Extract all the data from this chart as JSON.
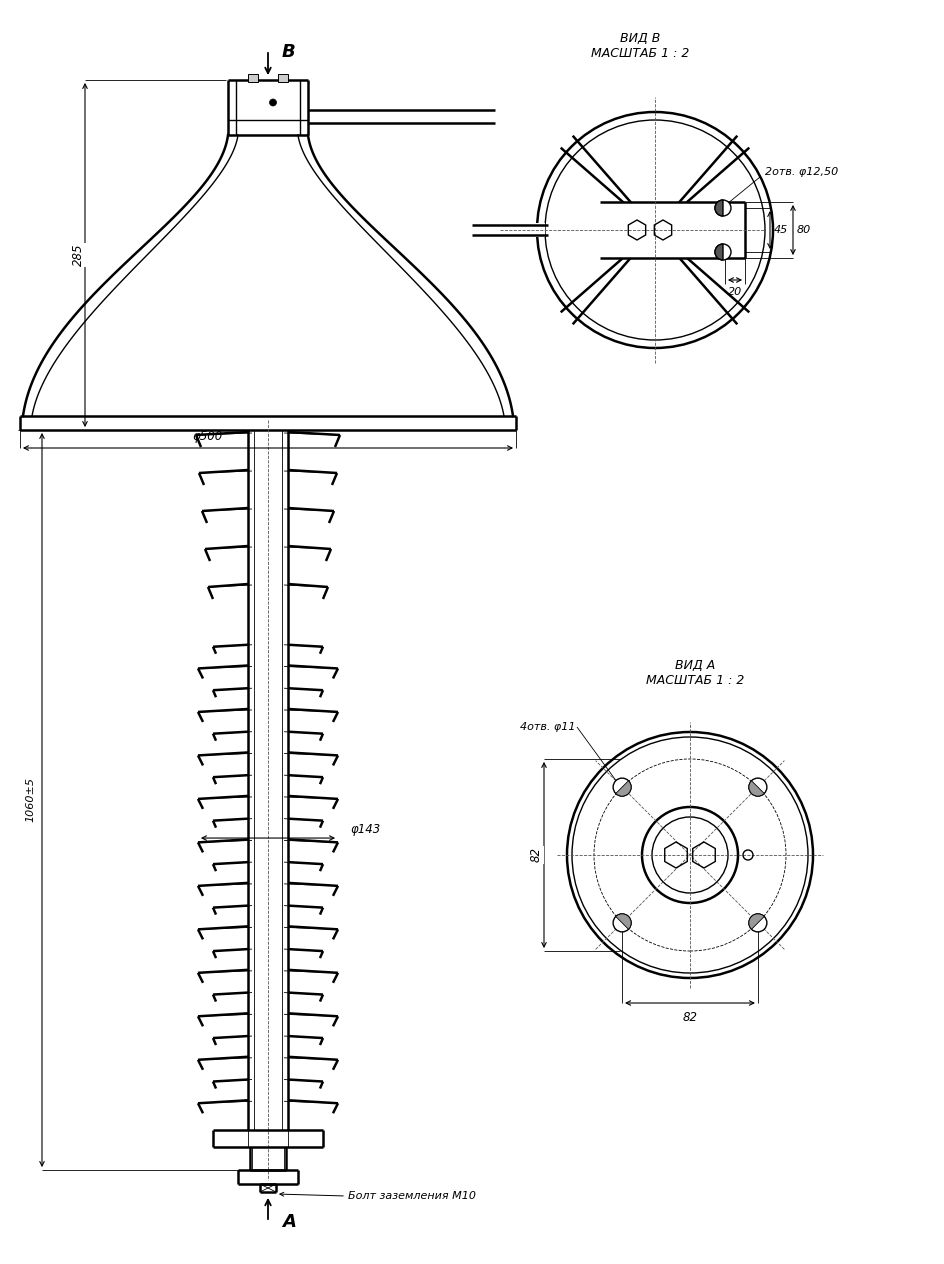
{
  "bg_color": "#ffffff",
  "line_color": "#000000",
  "title_vid_b": "ВИД В\nМАСШТАБ 1 : 2",
  "title_vid_a": "ВИД А\nМАСШТАБ 1 : 2",
  "label_b": "B",
  "label_a": "A",
  "dim_285": "285",
  "dim_1060": "1060±5",
  "dim_500": "φ500",
  "dim_143": "φ143",
  "dim_otv4_11": "4отв. φ11",
  "dim_otv2_12": "2отв. φ12,50",
  "dim_45": "45",
  "dim_80": "80",
  "dim_20": "20",
  "dim_82h": "82",
  "dim_82v": "82",
  "bolt_label": "Болт заземления М10"
}
